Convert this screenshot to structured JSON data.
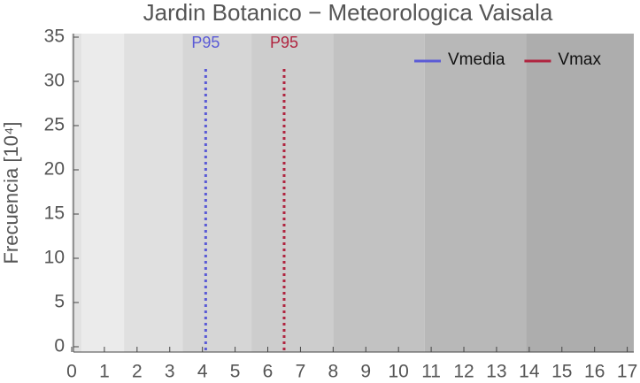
{
  "chart_data": {
    "type": "vline",
    "title": "Jardin Botanico − Meteorologica Vaisala",
    "y_label": "Frecuencia [10⁴]",
    "xlim": [
      0,
      17.2
    ],
    "xticks": [
      0,
      1,
      2,
      3,
      4,
      5,
      6,
      7,
      8,
      9,
      10,
      11,
      12,
      13,
      14,
      15,
      16,
      17
    ],
    "ylim": [
      0,
      35
    ],
    "yticks": [
      0,
      5,
      10,
      15,
      20,
      25,
      30,
      35
    ],
    "bands": {
      "edges": [
        0,
        0.3,
        1.6,
        3.4,
        5.5,
        8.0,
        10.8,
        13.9,
        17.2
      ],
      "colors": [
        "#e2e2e2",
        "#ebebeb",
        "#e0e0e0",
        "#d6d6d6",
        "#cdcdcd",
        "#c2c2c2",
        "#b8b8b8",
        "#adadad"
      ]
    },
    "legend": "upper right",
    "series": [
      {
        "name": "Vmedia",
        "color": "#5b5bd6",
        "label": "P95",
        "x": 4.1
      },
      {
        "name": "Vmax",
        "color": "#b0243f",
        "label": "P95",
        "x": 6.5
      }
    ]
  }
}
